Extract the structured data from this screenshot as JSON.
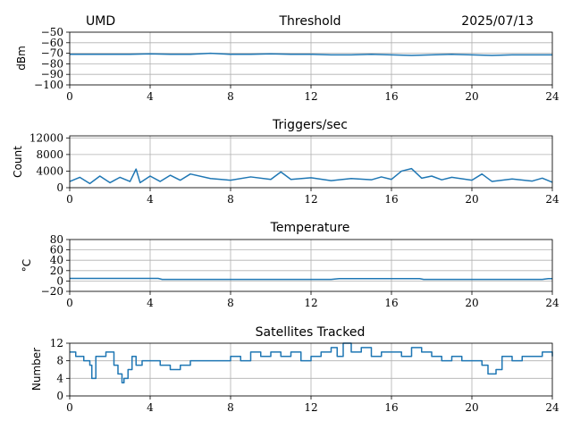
{
  "header": {
    "station": "UMD",
    "date": "2025/07/13"
  },
  "colors": {
    "series": "#1f77b4",
    "grid": "#b0b0b0",
    "axis": "#000000"
  },
  "chart_data": [
    {
      "type": "line",
      "title": "Threshold",
      "ylabel": "dBm",
      "xlim": [
        0,
        24
      ],
      "ylim": [
        -100,
        -50
      ],
      "xticks": [
        0,
        4,
        8,
        12,
        16,
        20,
        24
      ],
      "yticks": [
        -100,
        -90,
        -80,
        -70,
        -60,
        -50
      ],
      "ytick_labels": [
        "−100",
        "−90",
        "−80",
        "−70",
        "−60",
        "−50"
      ],
      "grid": true,
      "series": [
        {
          "x": [
            0,
            1,
            2,
            3,
            4,
            5,
            6,
            7,
            8,
            9,
            10,
            11,
            12,
            13,
            14,
            15,
            16,
            17,
            18,
            19,
            20,
            21,
            22,
            23,
            24
          ],
          "values": [
            -71,
            -71,
            -71,
            -71,
            -70.5,
            -71,
            -71,
            -70,
            -71,
            -71,
            -70.5,
            -71,
            -71,
            -71.5,
            -71.5,
            -71,
            -71.5,
            -72,
            -71.5,
            -71,
            -71.5,
            -72,
            -71.5,
            -71.5,
            -71.5
          ]
        }
      ]
    },
    {
      "type": "line",
      "title": "Triggers/sec",
      "ylabel": "Count",
      "xlim": [
        0,
        24
      ],
      "ylim": [
        0,
        12500
      ],
      "xticks": [
        0,
        4,
        8,
        12,
        16,
        20,
        24
      ],
      "yticks": [
        0,
        4000,
        8000,
        12000
      ],
      "ytick_labels": [
        "0",
        "4000",
        "8000",
        "12000"
      ],
      "grid": true,
      "series": [
        {
          "x": [
            0,
            0.5,
            1,
            1.5,
            2,
            2.5,
            3,
            3.3,
            3.5,
            4,
            4.5,
            5,
            5.5,
            6,
            7,
            8,
            9,
            10,
            10.5,
            11,
            12,
            13,
            14,
            15,
            15.5,
            16,
            16.5,
            17,
            17.5,
            18,
            18.5,
            19,
            20,
            20.5,
            21,
            22,
            23,
            23.5,
            24
          ],
          "values": [
            1500,
            2500,
            1000,
            2800,
            1200,
            2500,
            1500,
            4500,
            1200,
            2800,
            1500,
            3000,
            1800,
            3300,
            2200,
            1800,
            2600,
            2000,
            3800,
            2000,
            2400,
            1700,
            2200,
            1900,
            2600,
            2000,
            4000,
            4600,
            2300,
            2800,
            1900,
            2500,
            1800,
            3300,
            1500,
            2100,
            1600,
            2300,
            1300
          ]
        }
      ]
    },
    {
      "type": "line",
      "title": "Temperature",
      "ylabel": "°C",
      "xlim": [
        0,
        24
      ],
      "ylim": [
        -20,
        80
      ],
      "xticks": [
        0,
        4,
        8,
        12,
        16,
        20,
        24
      ],
      "yticks": [
        -20,
        0,
        20,
        40,
        60,
        80
      ],
      "ytick_labels": [
        "−20",
        "0",
        "20",
        "40",
        "60",
        "80"
      ],
      "grid": true,
      "series": [
        {
          "x": [
            0,
            4.4,
            4.6,
            13,
            13.4,
            17.4,
            17.6,
            23.5,
            23.8,
            24
          ],
          "values": [
            5,
            5,
            3,
            3,
            4.5,
            4.5,
            3,
            3,
            4.5,
            4.5
          ]
        }
      ]
    },
    {
      "type": "line",
      "title": "Satellites Tracked",
      "ylabel": "Number",
      "xlim": [
        0,
        24
      ],
      "ylim": [
        0,
        12
      ],
      "xticks": [
        0,
        4,
        8,
        12,
        16,
        20,
        24
      ],
      "yticks": [
        0,
        4,
        8,
        12
      ],
      "ytick_labels": [
        "0",
        "4",
        "8",
        "12"
      ],
      "grid": true,
      "step": true,
      "series": [
        {
          "x": [
            0,
            0.3,
            0.7,
            1,
            1.1,
            1.3,
            1.8,
            2.2,
            2.4,
            2.6,
            2.7,
            2.9,
            3.1,
            3.3,
            3.6,
            4,
            4.5,
            5,
            5.5,
            6,
            7,
            8,
            8.5,
            9,
            9.5,
            10,
            10.5,
            11,
            11.5,
            12,
            12.5,
            13,
            13.3,
            13.6,
            14,
            14.5,
            15,
            15.5,
            16,
            16.5,
            17,
            17.5,
            18,
            18.5,
            19,
            19.5,
            20,
            20.5,
            20.8,
            21.2,
            21.5,
            22,
            22.5,
            23,
            23.5,
            24
          ],
          "values": [
            10,
            9,
            8,
            7,
            4,
            9,
            10,
            7,
            5,
            3,
            4,
            6,
            9,
            7,
            8,
            8,
            7,
            6,
            7,
            8,
            8,
            9,
            8,
            10,
            9,
            10,
            9,
            10,
            8,
            9,
            10,
            11,
            9,
            12,
            10,
            11,
            9,
            10,
            10,
            9,
            11,
            10,
            9,
            8,
            9,
            8,
            8,
            7,
            5,
            6,
            9,
            8,
            9,
            9,
            10,
            9
          ]
        }
      ]
    }
  ]
}
